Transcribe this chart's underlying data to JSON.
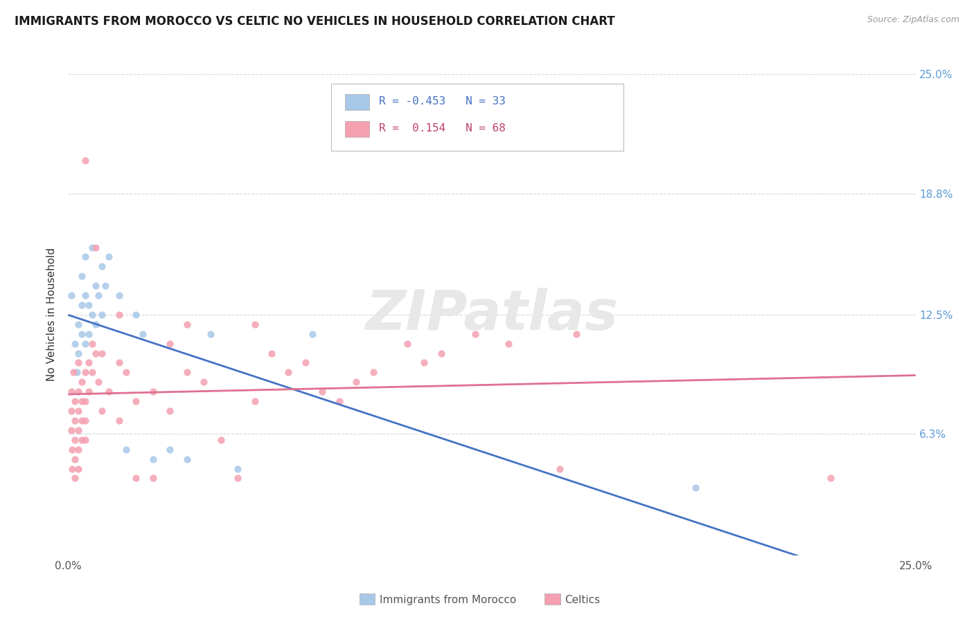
{
  "title": "IMMIGRANTS FROM MOROCCO VS CELTIC NO VEHICLES IN HOUSEHOLD CORRELATION CHART",
  "source": "Source: ZipAtlas.com",
  "ylabel": "No Vehicles in Household",
  "xmin": 0.0,
  "xmax": 25.0,
  "ymin": 0.0,
  "ymax": 25.0,
  "xtick_positions": [
    0,
    25
  ],
  "xtick_labels": [
    "0.0%",
    "25.0%"
  ],
  "ytick_values": [
    6.3,
    12.5,
    18.8,
    25.0
  ],
  "ytick_labels": [
    "6.3%",
    "12.5%",
    "18.8%",
    "25.0%"
  ],
  "blue_color": "#a8c8e8",
  "pink_color": "#f4a0b0",
  "blue_line_color": "#4472c4",
  "pink_line_color": "#e07090",
  "celtics_dash_color": "#cccccc",
  "watermark_text": "ZIPatlas",
  "watermark_color": "#e8e8e8",
  "legend_R_morocco": "-0.453",
  "legend_N_morocco": "33",
  "legend_R_celtics": "0.154",
  "legend_N_celtics": "68",
  "legend_blue_text_color": "#4472c4",
  "legend_pink_text_color": "#c0406a",
  "morocco_label": "Immigrants from Morocco",
  "celtics_label": "Celtics",
  "bottom_label_color": "#555555",
  "morocco_points": [
    [
      0.1,
      13.5
    ],
    [
      0.2,
      11.0
    ],
    [
      0.25,
      9.5
    ],
    [
      0.3,
      12.0
    ],
    [
      0.3,
      10.5
    ],
    [
      0.4,
      14.5
    ],
    [
      0.4,
      13.0
    ],
    [
      0.4,
      11.5
    ],
    [
      0.5,
      15.5
    ],
    [
      0.5,
      13.5
    ],
    [
      0.5,
      11.0
    ],
    [
      0.6,
      13.0
    ],
    [
      0.6,
      11.5
    ],
    [
      0.7,
      16.0
    ],
    [
      0.7,
      12.5
    ],
    [
      0.8,
      14.0
    ],
    [
      0.8,
      12.0
    ],
    [
      0.9,
      13.5
    ],
    [
      1.0,
      15.0
    ],
    [
      1.0,
      12.5
    ],
    [
      1.1,
      14.0
    ],
    [
      1.2,
      15.5
    ],
    [
      1.5,
      13.5
    ],
    [
      1.7,
      5.5
    ],
    [
      2.0,
      12.5
    ],
    [
      2.2,
      11.5
    ],
    [
      2.5,
      5.0
    ],
    [
      3.0,
      5.5
    ],
    [
      3.5,
      5.0
    ],
    [
      4.2,
      11.5
    ],
    [
      5.0,
      4.5
    ],
    [
      7.2,
      11.5
    ],
    [
      18.5,
      3.5
    ]
  ],
  "celtics_points": [
    [
      0.1,
      8.5
    ],
    [
      0.1,
      7.5
    ],
    [
      0.1,
      6.5
    ],
    [
      0.12,
      5.5
    ],
    [
      0.12,
      4.5
    ],
    [
      0.15,
      9.5
    ],
    [
      0.2,
      8.0
    ],
    [
      0.2,
      7.0
    ],
    [
      0.2,
      6.0
    ],
    [
      0.2,
      5.0
    ],
    [
      0.2,
      4.0
    ],
    [
      0.3,
      10.0
    ],
    [
      0.3,
      8.5
    ],
    [
      0.3,
      7.5
    ],
    [
      0.3,
      6.5
    ],
    [
      0.3,
      5.5
    ],
    [
      0.3,
      4.5
    ],
    [
      0.4,
      9.0
    ],
    [
      0.4,
      8.0
    ],
    [
      0.4,
      7.0
    ],
    [
      0.4,
      6.0
    ],
    [
      0.5,
      9.5
    ],
    [
      0.5,
      8.0
    ],
    [
      0.5,
      7.0
    ],
    [
      0.5,
      6.0
    ],
    [
      0.5,
      20.5
    ],
    [
      0.6,
      10.0
    ],
    [
      0.6,
      8.5
    ],
    [
      0.7,
      11.0
    ],
    [
      0.7,
      9.5
    ],
    [
      0.8,
      16.0
    ],
    [
      0.8,
      10.5
    ],
    [
      0.9,
      9.0
    ],
    [
      1.0,
      10.5
    ],
    [
      1.0,
      7.5
    ],
    [
      1.2,
      8.5
    ],
    [
      1.5,
      12.5
    ],
    [
      1.5,
      10.0
    ],
    [
      1.5,
      7.0
    ],
    [
      1.7,
      9.5
    ],
    [
      2.0,
      8.0
    ],
    [
      2.0,
      4.0
    ],
    [
      2.5,
      8.5
    ],
    [
      2.5,
      4.0
    ],
    [
      3.0,
      11.0
    ],
    [
      3.0,
      7.5
    ],
    [
      3.5,
      12.0
    ],
    [
      3.5,
      9.5
    ],
    [
      4.0,
      9.0
    ],
    [
      4.5,
      6.0
    ],
    [
      5.0,
      4.0
    ],
    [
      5.5,
      12.0
    ],
    [
      5.5,
      8.0
    ],
    [
      6.0,
      10.5
    ],
    [
      6.5,
      9.5
    ],
    [
      7.0,
      10.0
    ],
    [
      7.5,
      8.5
    ],
    [
      8.0,
      8.0
    ],
    [
      8.5,
      9.0
    ],
    [
      9.0,
      9.5
    ],
    [
      10.0,
      11.0
    ],
    [
      10.5,
      10.0
    ],
    [
      11.0,
      10.5
    ],
    [
      12.0,
      11.5
    ],
    [
      13.0,
      11.0
    ],
    [
      14.5,
      4.5
    ],
    [
      15.0,
      11.5
    ],
    [
      22.5,
      4.0
    ]
  ]
}
